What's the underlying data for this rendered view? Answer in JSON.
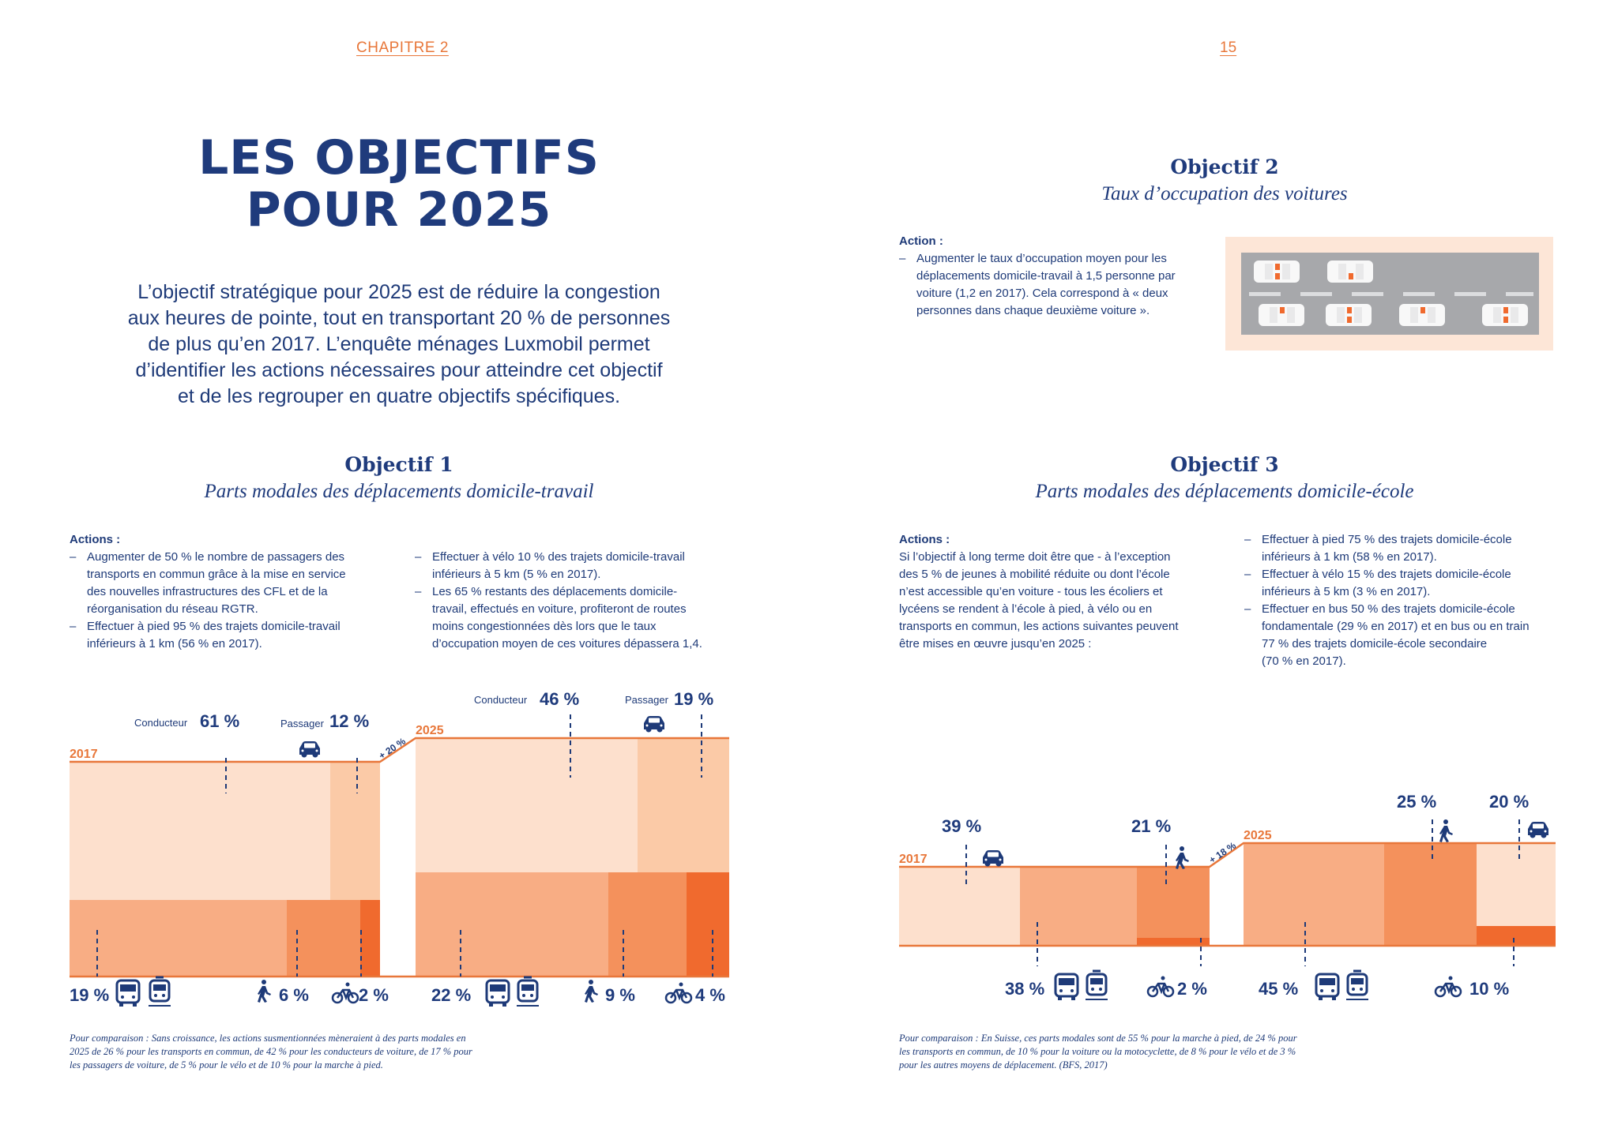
{
  "header": {
    "chapter": "CHAPITRE 2",
    "page_number": "15"
  },
  "title": {
    "line1": "LES OBJECTIFS",
    "line2": "POUR 2025"
  },
  "intro": {
    "lines": [
      "L’objectif stratégique pour 2025 est de réduire la congestion",
      "aux heures de pointe, tout en transportant 20 % de personnes",
      "de plus qu’en 2017. L’enquête ménages Luxmobil permet",
      "d’identifier les actions nécessaires pour atteindre cet objectif",
      "et de les regrouper en quatre objectifs spécifiques."
    ]
  },
  "objectif1": {
    "title": "Objectif 1",
    "subtitle": "Parts modales des déplacements domicile-travail",
    "actions_label": "Actions :",
    "col1": [
      {
        "lines": [
          "Augmenter de 50 % le nombre de passagers des",
          "transports en commun grâce à la mise en service",
          "des nouvelles infrastructures des CFL et de la",
          "réorganisation du réseau RGTR."
        ]
      },
      {
        "lines": [
          "Effectuer à pied 95 % des trajets domicile-travail",
          "inférieurs à 1 km (56 % en 2017)."
        ]
      }
    ],
    "col2": [
      {
        "lines": [
          "Effectuer à vélo 10 % des trajets domicile-travail",
          "inférieurs à 5 km (5 % en 2017)."
        ]
      },
      {
        "lines": [
          "Les 65 % restants des déplacements domicile-",
          "travail, effectués en voiture, profiteront de routes",
          "moins congestionnées dès lors que le taux",
          "d’occupation moyen de ces voitures dépassera 1,4."
        ]
      }
    ],
    "footnote": [
      "Pour comparaison : Sans croissance, les actions susmentionnées mèneraient à des parts modales en",
      "2025 de 26 % pour les transports en commun, de 42 % pour les conducteurs de voiture, de 17 % pour",
      "les passagers de voiture, de 5 % pour le vélo et de 10 % pour la marche à pied."
    ]
  },
  "objectif2": {
    "title": "Objectif 2",
    "subtitle": "Taux d’occupation des voitures",
    "actions_label": "Action :",
    "items": [
      {
        "lines": [
          "Augmenter le taux d’occupation moyen pour les",
          "déplacements domicile-travail à 1,5 personne par",
          "voiture (1,2 en 2017). Cela correspond à « deux",
          "personnes dans chaque deuxième voiture »."
        ]
      }
    ]
  },
  "objectif3": {
    "title": "Objectif 3",
    "subtitle": "Parts modales des déplacements domicile-école",
    "actions_label": "Actions :",
    "intro_lines": [
      "Si l’objectif à long terme doit être que - à l’exception",
      "des 5 % de jeunes à mobilité réduite ou dont l’école",
      "n’est accessible qu’en voiture - tous les écoliers et",
      "lycéens se rendent à l’école à pied, à vélo ou en",
      "transports en commun, les actions suivantes peuvent",
      "être mises en œuvre jusqu’en 2025 :"
    ],
    "items": [
      {
        "lines": [
          "Effectuer à pied 75 % des trajets domicile-école",
          "inférieurs à 1 km (58 % en 2017)."
        ]
      },
      {
        "lines": [
          "Effectuer à vélo 15 % des trajets domicile-école",
          "inférieurs à 5 km (3 % en 2017)."
        ]
      },
      {
        "lines": [
          "Effectuer en bus 50 % des trajets domicile-école",
          "fondamentale (29 % en 2017) et en bus ou en train",
          "77 % des trajets domicile-école secondaire",
          "(70 % en 2017)."
        ]
      }
    ],
    "footnote": [
      "Pour comparaison : En Suisse, ces parts modales sont de 55 % pour la marche à pied, de 24 % pour",
      "les transports en commun, de 10 % pour la voiture ou la motocyclette, de 8 % pour le vélo et de 3 %",
      "pour les autres moyens de déplacement. (BFS, 2017)"
    ]
  },
  "chart_data": [
    {
      "type": "area",
      "chart": "domicile-travail",
      "growth_label": "+ 20 %",
      "colors": {
        "car_driver": "#fde0cd",
        "car_passenger": "#fbcaa7",
        "transit": "#f8ad84",
        "walk": "#f4915c",
        "bike": "#f06a2e",
        "line": "#e8773a"
      },
      "series": [
        {
          "year": "2017",
          "total_index": 100,
          "conducteur_label": "Conducteur",
          "conducteur": "61 %",
          "passager_label": "Passager",
          "passager": "12 %",
          "transports_en_commun": "19 %",
          "marche": "6 %",
          "velo": "2 %",
          "values": {
            "conducteur": 61,
            "passager": 12,
            "transports_en_commun": 19,
            "marche": 6,
            "velo": 2
          }
        },
        {
          "year": "2025",
          "total_index": 120,
          "conducteur_label": "Conducteur",
          "conducteur": "46 %",
          "passager_label": "Passager",
          "passager": "19 %",
          "transports_en_commun": "22 %",
          "marche": "9 %",
          "velo": "4 %",
          "values": {
            "conducteur": 46,
            "passager": 19,
            "transports_en_commun": 22,
            "marche": 9,
            "velo": 4
          }
        }
      ]
    },
    {
      "type": "area",
      "chart": "domicile-école",
      "growth_label": "+ 18 %",
      "colors": {
        "car": "#fde0cd",
        "transit": "#f8ad84",
        "walk": "#f4915c",
        "bike": "#f06a2e",
        "line": "#e8773a"
      },
      "series": [
        {
          "year": "2017",
          "total_index": 100,
          "voiture": "39 %",
          "transports_en_commun": "38 %",
          "marche": "21 %",
          "velo": "2 %",
          "values": {
            "voiture": 39,
            "transports_en_commun": 38,
            "marche": 21,
            "velo": 2
          }
        },
        {
          "year": "2025",
          "total_index": 118,
          "voiture": "20 %",
          "transports_en_commun": "45 %",
          "marche": "25 %",
          "velo": "10 %",
          "values": {
            "voiture": 20,
            "transports_en_commun": 45,
            "marche": 25,
            "velo": 10
          }
        }
      ]
    }
  ]
}
